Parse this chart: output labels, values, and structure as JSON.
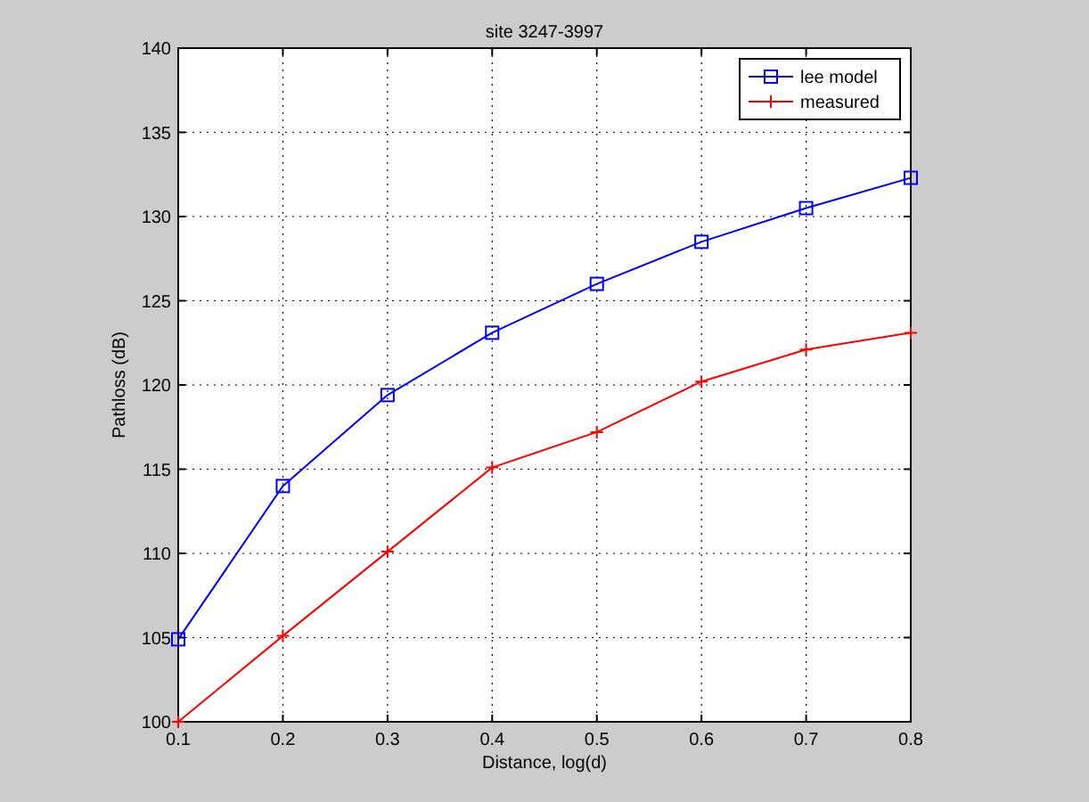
{
  "chart_data": {
    "type": "line",
    "title": "site 3247-3997",
    "xlabel": "Distance, log(d)",
    "ylabel": "Pathloss (dB)",
    "x": [
      0.1,
      0.2,
      0.3,
      0.4,
      0.5,
      0.6,
      0.7,
      0.8
    ],
    "series": [
      {
        "name": "lee model",
        "color": "#0000ff",
        "marker": "square",
        "values": [
          104.9,
          114.0,
          119.4,
          123.1,
          126.0,
          128.5,
          130.5,
          132.3
        ]
      },
      {
        "name": "measured",
        "color": "#ff0000",
        "marker": "cross",
        "values": [
          100.0,
          105.1,
          110.1,
          115.1,
          117.2,
          120.2,
          122.1,
          123.1
        ]
      }
    ],
    "xlim": [
      0.1,
      0.8
    ],
    "xticks": [
      0.1,
      0.2,
      0.3,
      0.4,
      0.5,
      0.6,
      0.7,
      0.8
    ],
    "ylim": [
      100,
      140
    ],
    "yticks": [
      100,
      105,
      110,
      115,
      120,
      125,
      130,
      135,
      140
    ],
    "grid": true,
    "legend": "top right",
    "line_style": "solid"
  }
}
